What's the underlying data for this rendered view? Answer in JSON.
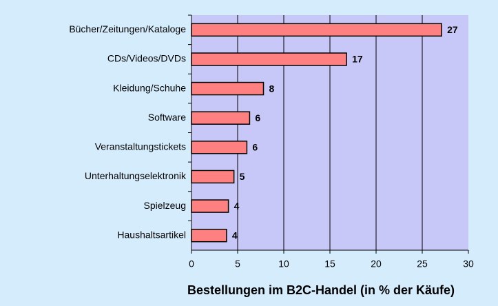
{
  "chart_data": {
    "type": "bar",
    "orientation": "horizontal",
    "x_label": "Bestellungen im B2C-Handel (in % der Käufe)",
    "categories": [
      "Bücher/Zeitungen/Kataloge",
      "CDs/Videos/DVDs",
      "Kleidung/Schuhe",
      "Software",
      "Veranstaltungstickets",
      "Unterhaltungselektronik",
      "Spielzeug",
      "Haushaltsartikel"
    ],
    "values": [
      27.1,
      16.8,
      7.8,
      6.3,
      6,
      4.6,
      4,
      3.8
    ],
    "value_labels": [
      "27",
      "17",
      "8",
      "6",
      "6",
      "5",
      "4",
      "4"
    ],
    "color": "#ff8080",
    "xlim": [
      0,
      30
    ],
    "xticks": [
      0,
      5,
      10,
      15,
      20,
      25,
      30
    ],
    "grid": true
  }
}
